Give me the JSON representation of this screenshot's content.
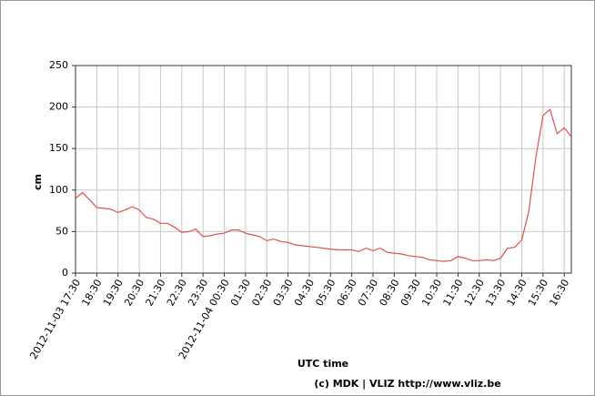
{
  "chart_data": {
    "type": "line",
    "x_label": "UTC time",
    "y_label": "cm",
    "credit": "(c) MDK | VLIZ http://www.vliz.be",
    "x": [
      "2012-11-03 17:30",
      "2012-11-03 17:50",
      "2012-11-03 18:10",
      "2012-11-03 18:30",
      "2012-11-03 18:50",
      "2012-11-03 19:10",
      "2012-11-03 19:30",
      "2012-11-03 19:50",
      "2012-11-03 20:10",
      "2012-11-03 20:30",
      "2012-11-03 20:50",
      "2012-11-03 21:10",
      "2012-11-03 21:30",
      "2012-11-03 21:50",
      "2012-11-03 22:10",
      "2012-11-03 22:30",
      "2012-11-03 22:50",
      "2012-11-03 23:10",
      "2012-11-03 23:30",
      "2012-11-03 23:50",
      "2012-11-04 00:10",
      "2012-11-04 00:30",
      "2012-11-04 00:50",
      "2012-11-04 01:10",
      "2012-11-04 01:30",
      "2012-11-04 01:50",
      "2012-11-04 02:10",
      "2012-11-04 02:30",
      "2012-11-04 02:50",
      "2012-11-04 03:10",
      "2012-11-04 03:30",
      "2012-11-04 03:50",
      "2012-11-04 04:10",
      "2012-11-04 04:30",
      "2012-11-04 04:50",
      "2012-11-04 05:10",
      "2012-11-04 05:30",
      "2012-11-04 05:50",
      "2012-11-04 06:10",
      "2012-11-04 06:30",
      "2012-11-04 06:50",
      "2012-11-04 07:10",
      "2012-11-04 07:30",
      "2012-11-04 07:50",
      "2012-11-04 08:10",
      "2012-11-04 08:30",
      "2012-11-04 08:50",
      "2012-11-04 09:10",
      "2012-11-04 09:30",
      "2012-11-04 09:50",
      "2012-11-04 10:10",
      "2012-11-04 10:30",
      "2012-11-04 10:50",
      "2012-11-04 11:10",
      "2012-11-04 11:30",
      "2012-11-04 11:50",
      "2012-11-04 12:10",
      "2012-11-04 12:30",
      "2012-11-04 12:50",
      "2012-11-04 13:10",
      "2012-11-04 13:30",
      "2012-11-04 13:50",
      "2012-11-04 14:10",
      "2012-11-04 14:30",
      "2012-11-04 14:50",
      "2012-11-04 15:10",
      "2012-11-04 15:30",
      "2012-11-04 15:50",
      "2012-11-04 16:10",
      "2012-11-04 16:30",
      "2012-11-04 16:50"
    ],
    "series": [
      {
        "color": "#e05050",
        "values": [
          90,
          97,
          88,
          79,
          78,
          77,
          73,
          76,
          80,
          76,
          67,
          65,
          60,
          60,
          55,
          49,
          50,
          53,
          44,
          45,
          47,
          48,
          52,
          52,
          48,
          46,
          44,
          39,
          41,
          38,
          37,
          34,
          33,
          32,
          31,
          30,
          29,
          28,
          28,
          28,
          26,
          30,
          27,
          30,
          25,
          24,
          23,
          21,
          20,
          19,
          16,
          15,
          14,
          15,
          20,
          18,
          15,
          15,
          16,
          15,
          18,
          30,
          31,
          40,
          75,
          140,
          190,
          197,
          168,
          175,
          164
        ]
      }
    ],
    "xlim": [
      "2012-11-03 17:30",
      "2012-11-04 16:50"
    ],
    "xticks": [
      "2012-11-03 17:30",
      {
        "value": "2012-11-03 18:30",
        "label": "18:30"
      },
      {
        "value": "2012-11-03 19:30",
        "label": "19:30"
      },
      {
        "value": "2012-11-03 20:30",
        "label": "20:30"
      },
      {
        "value": "2012-11-03 21:30",
        "label": "21:30"
      },
      {
        "value": "2012-11-03 22:30",
        "label": "22:30"
      },
      {
        "value": "2012-11-03 23:30",
        "label": "23:30"
      },
      "2012-11-04 00:30",
      {
        "value": "2012-11-04 01:30",
        "label": "01:30"
      },
      {
        "value": "2012-11-04 02:30",
        "label": "02:30"
      },
      {
        "value": "2012-11-04 03:30",
        "label": "03:30"
      },
      {
        "value": "2012-11-04 04:30",
        "label": "04:30"
      },
      {
        "value": "2012-11-04 05:30",
        "label": "05:30"
      },
      {
        "value": "2012-11-04 06:30",
        "label": "06:30"
      },
      {
        "value": "2012-11-04 07:30",
        "label": "07:30"
      },
      {
        "value": "2012-11-04 08:30",
        "label": "08:30"
      },
      {
        "value": "2012-11-04 09:30",
        "label": "09:30"
      },
      {
        "value": "2012-11-04 10:30",
        "label": "10:30"
      },
      {
        "value": "2012-11-04 11:30",
        "label": "11:30"
      },
      {
        "value": "2012-11-04 12:30",
        "label": "12:30"
      },
      {
        "value": "2012-11-04 13:30",
        "label": "13:30"
      },
      {
        "value": "2012-11-04 14:30",
        "label": "14:30"
      },
      {
        "value": "2012-11-04 15:30",
        "label": "15:30"
      },
      {
        "value": "2012-11-04 16:30",
        "label": "16:30"
      }
    ],
    "ylim": [
      0,
      250
    ],
    "yticks": [
      0,
      50,
      100,
      150,
      200,
      250
    ],
    "grid": true
  }
}
